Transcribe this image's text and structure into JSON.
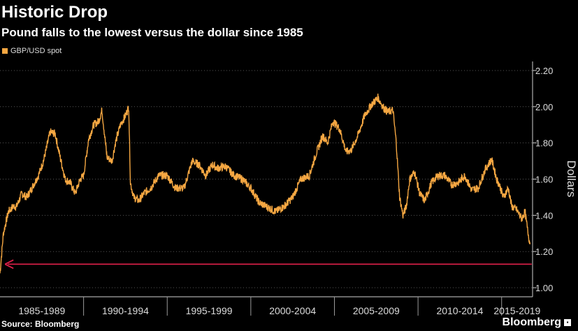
{
  "header": {
    "title": "Historic Drop",
    "subtitle": "Pound falls to the lowest versus the dollar since 1985"
  },
  "footer": {
    "source": "Source: Bloomberg",
    "brand": "Bloomberg"
  },
  "colors": {
    "series": "#f5a742",
    "arrow": "#e0204a",
    "grid": "#555555",
    "background": "#000000"
  },
  "chart_data": {
    "type": "line",
    "title": "Historic Drop",
    "subtitle": "Pound falls to the lowest versus the dollar since 1985",
    "ylabel": "Dollars",
    "xlabel": "",
    "xlim": [
      1985.0,
      2016.85
    ],
    "ylim": [
      0.95,
      2.25
    ],
    "yticks": [
      1.0,
      1.2,
      1.4,
      1.6,
      1.8,
      2.0,
      2.2
    ],
    "ytick_labels": [
      "1.00",
      "1.20",
      "1.40",
      "1.60",
      "1.80",
      "2.00",
      "2.20"
    ],
    "x_groups": [
      {
        "label": "1985-1989",
        "start": 1985,
        "end": 1990
      },
      {
        "label": "1990-1994",
        "start": 1990,
        "end": 1995
      },
      {
        "label": "1995-1999",
        "start": 1995,
        "end": 2000
      },
      {
        "label": "2000-2004",
        "start": 2000,
        "end": 2005
      },
      {
        "label": "2005-2009",
        "start": 2005,
        "end": 2010
      },
      {
        "label": "2010-2014",
        "start": 2010,
        "end": 2015
      },
      {
        "label": "2015-2019",
        "start": 2015,
        "end": 2020
      }
    ],
    "legend": [
      "GBP/USD spot"
    ],
    "grid": true,
    "series": [
      {
        "name": "GBP/USD spot",
        "x": [
          1985.0,
          1985.2,
          1985.5,
          1985.8,
          1986.0,
          1986.3,
          1986.6,
          1986.9,
          1987.3,
          1987.6,
          1988.0,
          1988.3,
          1988.6,
          1988.9,
          1989.2,
          1989.5,
          1989.8,
          1990.0,
          1990.3,
          1990.6,
          1990.9,
          1991.1,
          1991.4,
          1991.7,
          1991.9,
          1992.2,
          1992.5,
          1992.7,
          1992.8,
          1993.0,
          1993.3,
          1993.6,
          1994.0,
          1994.5,
          1995.0,
          1995.5,
          1996.0,
          1996.5,
          1996.9,
          1997.3,
          1997.7,
          1998.0,
          1998.5,
          1999.0,
          1999.5,
          2000.0,
          2000.5,
          2000.9,
          2001.5,
          2002.0,
          2002.5,
          2003.0,
          2003.5,
          2003.9,
          2004.3,
          2004.6,
          2004.9,
          2005.3,
          2005.7,
          2006.0,
          2006.4,
          2006.8,
          2007.2,
          2007.6,
          2007.9,
          2008.2,
          2008.5,
          2008.7,
          2008.9,
          2009.1,
          2009.3,
          2009.5,
          2009.8,
          2010.1,
          2010.4,
          2010.8,
          2011.2,
          2011.6,
          2012.0,
          2012.4,
          2012.8,
          2013.2,
          2013.6,
          2014.0,
          2014.4,
          2014.7,
          2014.9,
          2015.1,
          2015.4,
          2015.6,
          2015.9,
          2016.2,
          2016.4,
          2016.55,
          2016.7
        ],
        "values": [
          1.08,
          1.3,
          1.42,
          1.45,
          1.45,
          1.52,
          1.5,
          1.55,
          1.62,
          1.7,
          1.86,
          1.85,
          1.72,
          1.6,
          1.58,
          1.52,
          1.6,
          1.62,
          1.82,
          1.9,
          1.92,
          1.98,
          1.72,
          1.7,
          1.8,
          1.9,
          1.95,
          2.0,
          1.58,
          1.5,
          1.48,
          1.52,
          1.55,
          1.62,
          1.62,
          1.55,
          1.55,
          1.7,
          1.68,
          1.62,
          1.68,
          1.66,
          1.67,
          1.62,
          1.6,
          1.55,
          1.47,
          1.45,
          1.42,
          1.45,
          1.5,
          1.6,
          1.62,
          1.74,
          1.84,
          1.8,
          1.92,
          1.88,
          1.75,
          1.76,
          1.84,
          1.95,
          2.01,
          2.05,
          2.0,
          1.97,
          1.98,
          1.8,
          1.5,
          1.4,
          1.45,
          1.6,
          1.64,
          1.52,
          1.48,
          1.58,
          1.62,
          1.62,
          1.57,
          1.58,
          1.62,
          1.54,
          1.55,
          1.65,
          1.71,
          1.6,
          1.56,
          1.5,
          1.55,
          1.45,
          1.43,
          1.38,
          1.42,
          1.32,
          1.24
        ]
      }
    ],
    "annotations": [
      {
        "type": "arrow",
        "label": "",
        "from_x": 2016.8,
        "to_x": 1985.3,
        "y": 1.13
      }
    ]
  }
}
